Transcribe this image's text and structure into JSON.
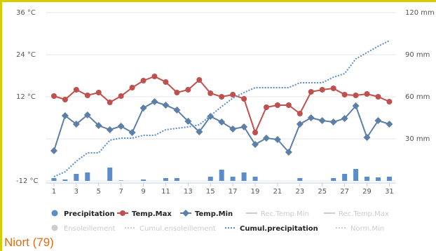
{
  "chart_data": {
    "type": "line",
    "title": "Niort (79)",
    "x": [
      1,
      2,
      3,
      4,
      5,
      6,
      7,
      8,
      9,
      10,
      11,
      12,
      13,
      14,
      15,
      16,
      17,
      18,
      19,
      20,
      21,
      22,
      23,
      24,
      25,
      26,
      27,
      28,
      29,
      30,
      31
    ],
    "xlim": [
      0.25,
      31.6
    ],
    "xticks": [
      1,
      3,
      5,
      7,
      9,
      11,
      13,
      15,
      17,
      19,
      21,
      23,
      25,
      27,
      29,
      31
    ],
    "ylim": [
      -12,
      36
    ],
    "yticks": [
      {
        "value": 36,
        "label": "36 °C"
      },
      {
        "value": 24,
        "label": "24 °C"
      },
      {
        "value": 12,
        "label": "12 °C"
      },
      {
        "value": -12,
        "label": "-12 °C"
      }
    ],
    "y2lim": [
      0,
      120
    ],
    "y2ticks": [
      {
        "value": 120,
        "label": "120 mm"
      },
      {
        "value": 90,
        "label": "90 mm"
      },
      {
        "value": 60,
        "label": "60 mm"
      },
      {
        "value": 30,
        "label": "30 mm"
      }
    ],
    "grid": true,
    "series": [
      {
        "name": "Precipitation",
        "kind": "column",
        "axis": "y2",
        "color": "#5b8ccc",
        "values": [
          2,
          1,
          5,
          6,
          0,
          9.5,
          0.3,
          0,
          1,
          0,
          2,
          2,
          0,
          0,
          3,
          8,
          3,
          6,
          3,
          0,
          0,
          0,
          2,
          0,
          0,
          2,
          5,
          8.5,
          3,
          2.5,
          3
        ]
      },
      {
        "name": "Temp.Max",
        "kind": "line",
        "marker": "circle",
        "color": "#c0504d",
        "values": [
          12.2,
          11.2,
          14,
          12.4,
          13.2,
          10.4,
          12.2,
          14.6,
          16.6,
          17.8,
          16.2,
          13.2,
          14,
          16.8,
          13,
          12,
          12.6,
          11.4,
          1.8,
          9,
          9.6,
          9.6,
          7.2,
          13.4,
          14,
          14.4,
          12.6,
          12.4,
          12.8,
          12,
          10.6
        ]
      },
      {
        "name": "Temp.Min",
        "kind": "line",
        "marker": "diamond",
        "color": "#5b7fa6",
        "values": [
          -3.4,
          6.6,
          4.2,
          6.8,
          3.8,
          2.6,
          3.6,
          1.8,
          8.8,
          10.6,
          9.6,
          8.2,
          5,
          2,
          6.4,
          4.8,
          2.8,
          3.4,
          -1.6,
          0.2,
          -0.2,
          -3.8,
          4.2,
          6,
          5.2,
          4.8,
          5.8,
          9.4,
          0.4,
          5.2,
          4.2
        ]
      },
      {
        "name": "Cumul.precipitation",
        "kind": "dotted",
        "axis": "y2",
        "color": "#5b8ccc",
        "values": [
          3,
          6.5,
          14,
          20,
          20,
          29,
          30.5,
          30.5,
          32.5,
          32.5,
          36.5,
          37.5,
          38.5,
          40,
          46.5,
          53,
          59,
          63,
          66.5,
          66.5,
          66.5,
          66.5,
          70,
          70,
          70,
          74,
          76.5,
          87,
          91.5,
          96,
          100
        ]
      }
    ],
    "hidden_series": [
      "Rec.Temp.Min",
      "Rec.Temp.Max",
      "Ensoleillement",
      "Cumul.ensoleillement",
      "Norm.Min"
    ]
  }
}
